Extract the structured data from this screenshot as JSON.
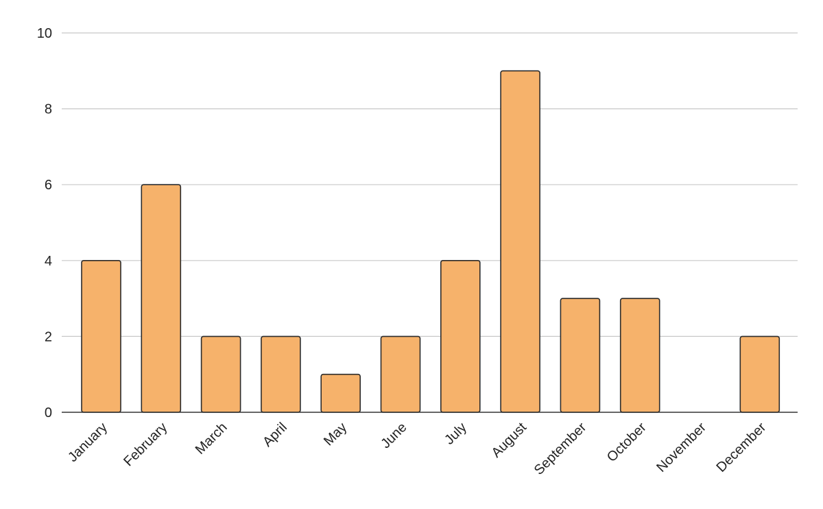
{
  "chart_data": {
    "type": "bar",
    "title": "",
    "xlabel": "",
    "ylabel": "",
    "categories": [
      "January",
      "February",
      "March",
      "April",
      "May",
      "June",
      "July",
      "August",
      "September",
      "October",
      "November",
      "December"
    ],
    "values": [
      4,
      6,
      2,
      2,
      1,
      2,
      4,
      9,
      3,
      3,
      0,
      2
    ],
    "ylim": [
      0,
      10
    ],
    "yticks": [
      "0",
      "2",
      "4",
      "6",
      "8",
      "10"
    ],
    "grid": true,
    "legend": "none",
    "colors": {
      "bar_fill": "#f6b26b",
      "bar_stroke": "#2b2b2b",
      "grid": "#c8c8c8",
      "axis": "#333333"
    }
  }
}
